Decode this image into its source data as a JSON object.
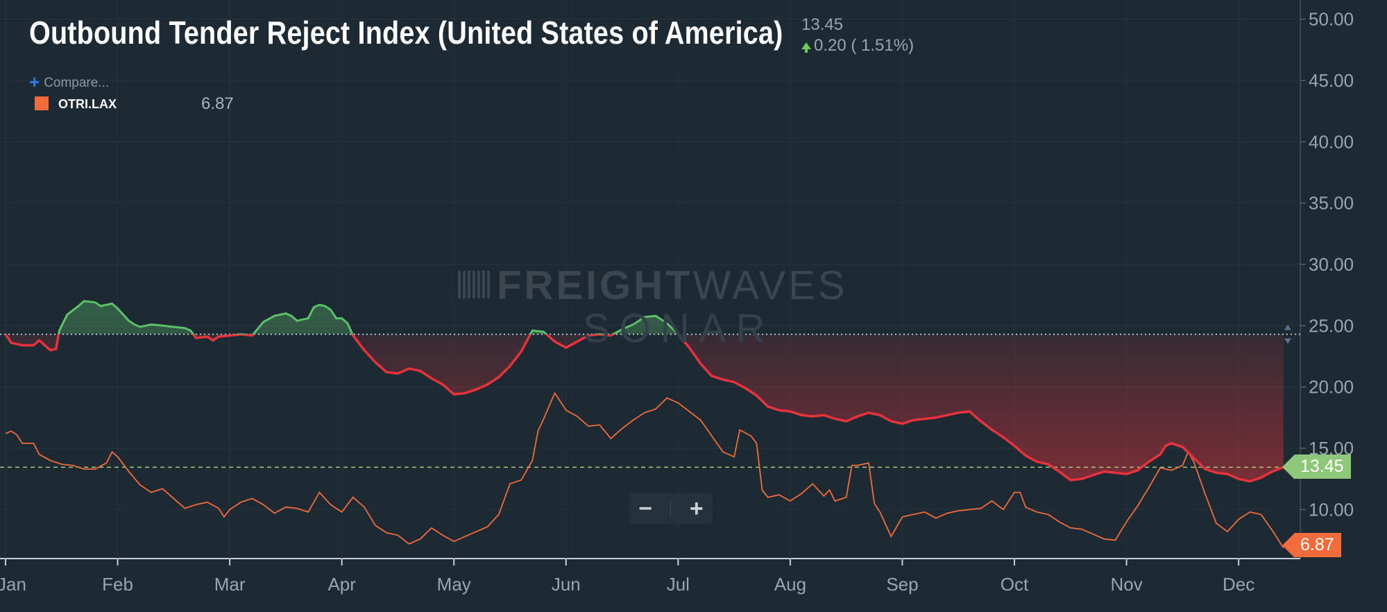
{
  "title": "Outbound Tender Reject Index (United States of America)",
  "header": {
    "last_value": "13.45",
    "change": "0.20 ( 1.51%)",
    "compare_label": "Compare..."
  },
  "legend": {
    "symbol": "OTRI.LAX",
    "value": "6.87",
    "color": "#f26b3a"
  },
  "watermark": {
    "brand": "FREIGHT",
    "brand_thin": "WAVES",
    "product": "SONAR"
  },
  "zoom": {
    "minus": "−",
    "plus": "+"
  },
  "tags": {
    "usa_last": "13.45",
    "lax_last": "6.87"
  },
  "colors": {
    "background": "#1e2a33",
    "above": "#5cc26a",
    "below": "#e8323c",
    "lax": "#f26b3a",
    "last_tag": "#8fc77a"
  },
  "chart_data": {
    "type": "line",
    "x_unit": "month (0 = start of Jan)",
    "x_ticks": [
      {
        "label": "Jan",
        "x": 0
      },
      {
        "label": "Feb",
        "x": 1
      },
      {
        "label": "Mar",
        "x": 2
      },
      {
        "label": "Apr",
        "x": 3
      },
      {
        "label": "May",
        "x": 4
      },
      {
        "label": "Jun",
        "x": 5
      },
      {
        "label": "Jul",
        "x": 6
      },
      {
        "label": "Aug",
        "x": 7
      },
      {
        "label": "Sep",
        "x": 8
      },
      {
        "label": "Oct",
        "x": 9
      },
      {
        "label": "Nov",
        "x": 10
      },
      {
        "label": "Dec",
        "x": 11
      }
    ],
    "xlim": [
      0,
      11.55
    ],
    "y_ticks": [
      "10.00",
      "15.00",
      "20.00",
      "25.00",
      "30.00",
      "35.00",
      "40.00",
      "45.00",
      "50.00"
    ],
    "ylim": [
      6,
      51
    ],
    "reference_line": 24.3,
    "last_value_line": 13.45,
    "series": [
      {
        "name": "Outbound Tender Reject Index (United States of America)",
        "points": [
          [
            0,
            24.3
          ],
          [
            0.05,
            23.6
          ],
          [
            0.15,
            23.4
          ],
          [
            0.25,
            23.4
          ],
          [
            0.3,
            23.8
          ],
          [
            0.35,
            23.4
          ],
          [
            0.4,
            23.0
          ],
          [
            0.45,
            23.1
          ],
          [
            0.48,
            24.6
          ],
          [
            0.55,
            25.9
          ],
          [
            0.65,
            26.6
          ],
          [
            0.7,
            27.0
          ],
          [
            0.8,
            26.9
          ],
          [
            0.85,
            26.6
          ],
          [
            0.95,
            26.8
          ],
          [
            1.0,
            26.4
          ],
          [
            1.1,
            25.4
          ],
          [
            1.15,
            25.1
          ],
          [
            1.2,
            24.9
          ],
          [
            1.3,
            25.1
          ],
          [
            1.4,
            25.0
          ],
          [
            1.5,
            24.9
          ],
          [
            1.6,
            24.8
          ],
          [
            1.65,
            24.6
          ],
          [
            1.7,
            24.0
          ],
          [
            1.8,
            24.1
          ],
          [
            1.85,
            23.8
          ],
          [
            1.9,
            24.1
          ],
          [
            2.0,
            24.2
          ],
          [
            2.1,
            24.3
          ],
          [
            2.2,
            24.2
          ],
          [
            2.3,
            25.3
          ],
          [
            2.4,
            25.8
          ],
          [
            2.5,
            26.0
          ],
          [
            2.55,
            25.8
          ],
          [
            2.6,
            25.4
          ],
          [
            2.7,
            25.6
          ],
          [
            2.75,
            26.5
          ],
          [
            2.8,
            26.7
          ],
          [
            2.85,
            26.6
          ],
          [
            2.9,
            26.3
          ],
          [
            2.95,
            25.6
          ],
          [
            3.0,
            25.6
          ],
          [
            3.05,
            25.2
          ],
          [
            3.1,
            24.2
          ],
          [
            3.2,
            23.0
          ],
          [
            3.3,
            22.0
          ],
          [
            3.4,
            21.2
          ],
          [
            3.5,
            21.1
          ],
          [
            3.6,
            21.5
          ],
          [
            3.7,
            21.3
          ],
          [
            3.8,
            20.7
          ],
          [
            3.9,
            20.2
          ],
          [
            4.0,
            19.4
          ],
          [
            4.1,
            19.5
          ],
          [
            4.2,
            19.8
          ],
          [
            4.3,
            20.2
          ],
          [
            4.4,
            20.8
          ],
          [
            4.5,
            21.7
          ],
          [
            4.6,
            22.9
          ],
          [
            4.7,
            24.6
          ],
          [
            4.8,
            24.5
          ],
          [
            4.9,
            23.7
          ],
          [
            5.0,
            23.2
          ],
          [
            5.1,
            23.7
          ],
          [
            5.2,
            24.2
          ],
          [
            5.3,
            24.3
          ],
          [
            5.4,
            24.2
          ],
          [
            5.5,
            24.7
          ],
          [
            5.6,
            25.1
          ],
          [
            5.7,
            25.7
          ],
          [
            5.8,
            25.8
          ],
          [
            5.9,
            25.2
          ],
          [
            6.0,
            24.3
          ],
          [
            6.1,
            23.2
          ],
          [
            6.2,
            21.9
          ],
          [
            6.3,
            20.9
          ],
          [
            6.4,
            20.6
          ],
          [
            6.5,
            20.4
          ],
          [
            6.6,
            19.9
          ],
          [
            6.7,
            19.3
          ],
          [
            6.8,
            18.4
          ],
          [
            6.9,
            18.1
          ],
          [
            7.0,
            18.0
          ],
          [
            7.1,
            17.7
          ],
          [
            7.2,
            17.6
          ],
          [
            7.3,
            17.7
          ],
          [
            7.4,
            17.4
          ],
          [
            7.5,
            17.2
          ],
          [
            7.6,
            17.6
          ],
          [
            7.7,
            17.9
          ],
          [
            7.8,
            17.7
          ],
          [
            7.9,
            17.2
          ],
          [
            8.0,
            17.0
          ],
          [
            8.1,
            17.3
          ],
          [
            8.2,
            17.4
          ],
          [
            8.3,
            17.5
          ],
          [
            8.4,
            17.7
          ],
          [
            8.5,
            17.9
          ],
          [
            8.6,
            18.0
          ],
          [
            8.7,
            17.2
          ],
          [
            8.8,
            16.5
          ],
          [
            8.9,
            15.9
          ],
          [
            9.0,
            15.2
          ],
          [
            9.1,
            14.4
          ],
          [
            9.2,
            13.9
          ],
          [
            9.3,
            13.7
          ],
          [
            9.4,
            13.1
          ],
          [
            9.5,
            12.4
          ],
          [
            9.6,
            12.5
          ],
          [
            9.7,
            12.8
          ],
          [
            9.8,
            13.1
          ],
          [
            9.9,
            13.0
          ],
          [
            10.0,
            12.9
          ],
          [
            10.1,
            13.2
          ],
          [
            10.2,
            13.9
          ],
          [
            10.3,
            14.5
          ],
          [
            10.35,
            15.2
          ],
          [
            10.4,
            15.4
          ],
          [
            10.5,
            15.1
          ],
          [
            10.6,
            14.2
          ],
          [
            10.7,
            13.3
          ],
          [
            10.8,
            13.0
          ],
          [
            10.9,
            12.9
          ],
          [
            11.0,
            12.5
          ],
          [
            11.1,
            12.3
          ],
          [
            11.2,
            12.6
          ],
          [
            11.3,
            13.1
          ],
          [
            11.4,
            13.45
          ]
        ]
      },
      {
        "name": "OTRI.LAX",
        "points": [
          [
            0,
            16.2
          ],
          [
            0.05,
            16.4
          ],
          [
            0.1,
            16.1
          ],
          [
            0.15,
            15.4
          ],
          [
            0.25,
            15.4
          ],
          [
            0.3,
            14.5
          ],
          [
            0.4,
            14.0
          ],
          [
            0.5,
            13.7
          ],
          [
            0.6,
            13.6
          ],
          [
            0.7,
            13.3
          ],
          [
            0.8,
            13.3
          ],
          [
            0.9,
            13.8
          ],
          [
            0.95,
            14.7
          ],
          [
            1.0,
            14.3
          ],
          [
            1.1,
            13.1
          ],
          [
            1.2,
            12.0
          ],
          [
            1.3,
            11.4
          ],
          [
            1.4,
            11.7
          ],
          [
            1.5,
            10.9
          ],
          [
            1.6,
            10.1
          ],
          [
            1.7,
            10.4
          ],
          [
            1.8,
            10.6
          ],
          [
            1.9,
            10.1
          ],
          [
            1.95,
            9.4
          ],
          [
            2.0,
            10.0
          ],
          [
            2.1,
            10.6
          ],
          [
            2.2,
            10.9
          ],
          [
            2.3,
            10.4
          ],
          [
            2.4,
            9.7
          ],
          [
            2.5,
            10.2
          ],
          [
            2.6,
            10.1
          ],
          [
            2.7,
            9.8
          ],
          [
            2.8,
            11.4
          ],
          [
            2.9,
            10.4
          ],
          [
            3.0,
            9.8
          ],
          [
            3.1,
            11.0
          ],
          [
            3.2,
            10.2
          ],
          [
            3.3,
            8.7
          ],
          [
            3.4,
            8.1
          ],
          [
            3.5,
            7.9
          ],
          [
            3.6,
            7.2
          ],
          [
            3.7,
            7.6
          ],
          [
            3.8,
            8.5
          ],
          [
            3.9,
            7.9
          ],
          [
            4.0,
            7.4
          ],
          [
            4.1,
            7.8
          ],
          [
            4.2,
            8.2
          ],
          [
            4.3,
            8.6
          ],
          [
            4.4,
            9.6
          ],
          [
            4.5,
            12.1
          ],
          [
            4.6,
            12.4
          ],
          [
            4.7,
            14.0
          ],
          [
            4.75,
            16.4
          ],
          [
            4.8,
            17.4
          ],
          [
            4.9,
            19.5
          ],
          [
            5.0,
            18.1
          ],
          [
            5.1,
            17.6
          ],
          [
            5.2,
            16.8
          ],
          [
            5.3,
            16.9
          ],
          [
            5.4,
            15.8
          ],
          [
            5.5,
            16.6
          ],
          [
            5.6,
            17.3
          ],
          [
            5.7,
            17.9
          ],
          [
            5.8,
            18.2
          ],
          [
            5.9,
            19.1
          ],
          [
            6.0,
            18.7
          ],
          [
            6.1,
            18.0
          ],
          [
            6.2,
            17.3
          ],
          [
            6.3,
            16.0
          ],
          [
            6.4,
            14.7
          ],
          [
            6.5,
            14.3
          ],
          [
            6.55,
            16.5
          ],
          [
            6.65,
            16.0
          ],
          [
            6.7,
            15.4
          ],
          [
            6.75,
            11.6
          ],
          [
            6.8,
            11.0
          ],
          [
            6.9,
            11.2
          ],
          [
            7.0,
            10.7
          ],
          [
            7.1,
            11.3
          ],
          [
            7.2,
            12.1
          ],
          [
            7.3,
            11.1
          ],
          [
            7.35,
            11.6
          ],
          [
            7.4,
            10.7
          ],
          [
            7.5,
            11.0
          ],
          [
            7.55,
            13.6
          ],
          [
            7.6,
            13.6
          ],
          [
            7.7,
            13.8
          ],
          [
            7.75,
            10.5
          ],
          [
            7.8,
            9.8
          ],
          [
            7.9,
            7.8
          ],
          [
            8.0,
            9.4
          ],
          [
            8.1,
            9.6
          ],
          [
            8.2,
            9.8
          ],
          [
            8.3,
            9.3
          ],
          [
            8.4,
            9.7
          ],
          [
            8.5,
            9.9
          ],
          [
            8.6,
            10.0
          ],
          [
            8.7,
            10.1
          ],
          [
            8.8,
            10.7
          ],
          [
            8.9,
            10.0
          ],
          [
            9.0,
            11.4
          ],
          [
            9.05,
            11.4
          ],
          [
            9.1,
            10.2
          ],
          [
            9.2,
            9.8
          ],
          [
            9.3,
            9.6
          ],
          [
            9.4,
            9.0
          ],
          [
            9.5,
            8.5
          ],
          [
            9.6,
            8.4
          ],
          [
            9.7,
            8.0
          ],
          [
            9.8,
            7.6
          ],
          [
            9.9,
            7.5
          ],
          [
            10.0,
            9.0
          ],
          [
            10.1,
            10.3
          ],
          [
            10.2,
            11.8
          ],
          [
            10.3,
            13.4
          ],
          [
            10.4,
            13.2
          ],
          [
            10.5,
            13.6
          ],
          [
            10.55,
            14.7
          ],
          [
            10.6,
            13.9
          ],
          [
            10.7,
            11.3
          ],
          [
            10.8,
            8.9
          ],
          [
            10.9,
            8.2
          ],
          [
            11.0,
            9.2
          ],
          [
            11.1,
            9.8
          ],
          [
            11.2,
            9.6
          ],
          [
            11.3,
            8.3
          ],
          [
            11.4,
            6.87
          ]
        ]
      }
    ]
  }
}
